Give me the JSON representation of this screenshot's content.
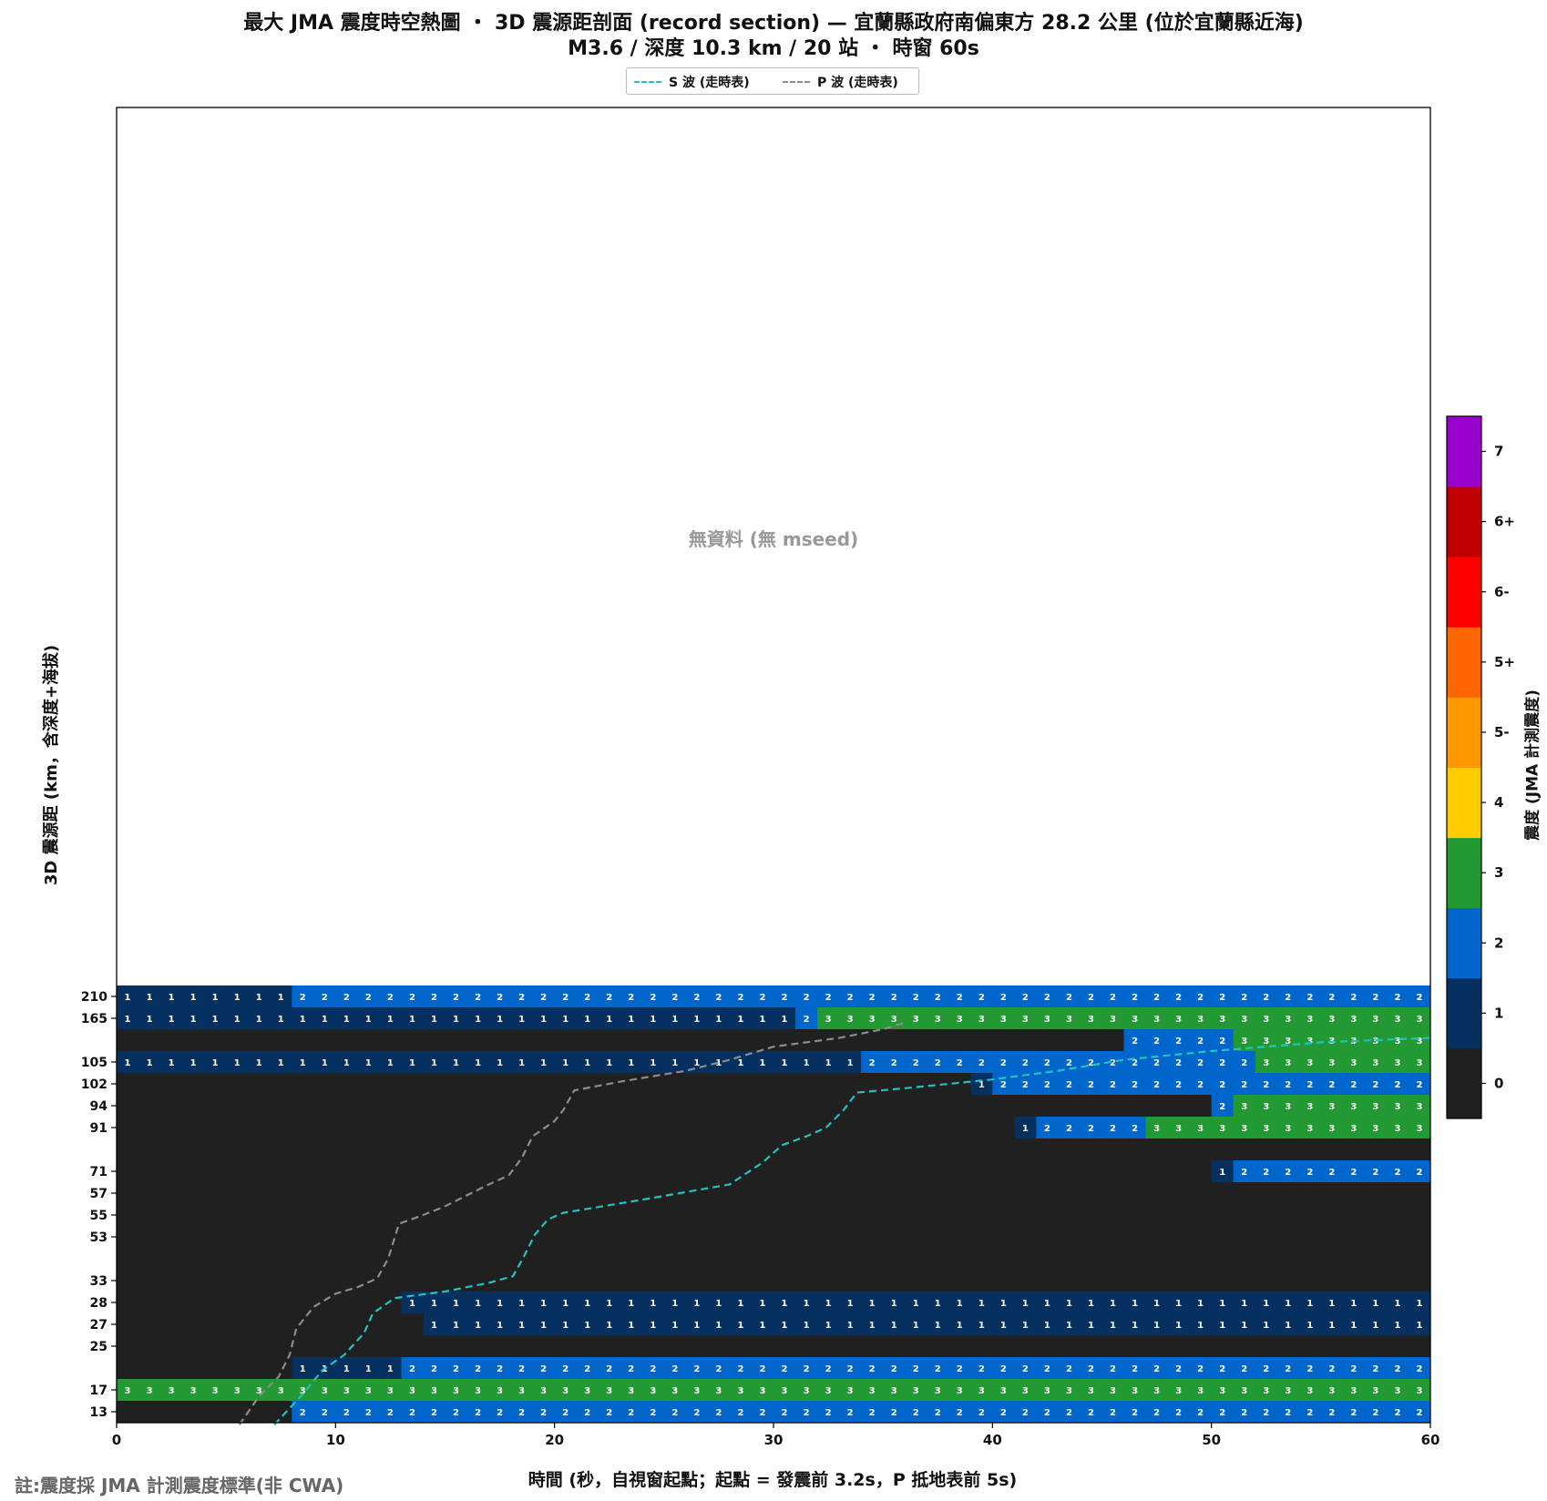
{
  "chart_data": {
    "type": "heatmap",
    "title": "最大 JMA 震度時空熱圖 ・ 3D 震源距剖面 (record section) — 宜蘭縣政府南偏東方  28.2  公里 (位於宜蘭縣近海)",
    "subtitle": "M3.6 / 深度 10.3 km / 20 站 ・ 時窗 60s",
    "xlabel": "時間 (秒，自視窗起點；起點 = 發震前 3.2s，P 抵地表前 5s)",
    "ylabel": "3D 震源距 (km，含深度+海拔)",
    "xlim": [
      0,
      60
    ],
    "x_ticks": [
      0,
      10,
      20,
      30,
      40,
      50,
      60
    ],
    "no_data_text": "無資料 (無 mseed)",
    "note": "註:震度採 JMA 計測震度標準(非 CWA)",
    "legend": [
      {
        "label": "S 波 (走時表)",
        "color": "#22c2c2"
      },
      {
        "label": "P 波 (走時表)",
        "color": "#8c8c8c"
      }
    ],
    "legend_position": "top-center",
    "colorbar": {
      "label": "震度 (JMA 計測震度)",
      "levels": [
        {
          "label": "0",
          "color": "#202020"
        },
        {
          "label": "1",
          "color": "#06305f"
        },
        {
          "label": "2",
          "color": "#0066cc"
        },
        {
          "label": "3",
          "color": "#229933"
        },
        {
          "label": "4",
          "color": "#ffcc00"
        },
        {
          "label": "5-",
          "color": "#ff9900"
        },
        {
          "label": "5+",
          "color": "#ff6600"
        },
        {
          "label": "6-",
          "color": "#ff0000"
        },
        {
          "label": "6+",
          "color": "#c00000"
        },
        {
          "label": "7",
          "color": "#9900cc"
        }
      ]
    },
    "rows": [
      {
        "label": "210",
        "segments": [
          [
            0,
            8,
            1
          ],
          [
            8,
            60,
            2
          ]
        ]
      },
      {
        "label": "165",
        "segments": [
          [
            0,
            31,
            1
          ],
          [
            31,
            32,
            2
          ],
          [
            32,
            60,
            3
          ]
        ]
      },
      {
        "label": "",
        "segments": [
          [
            0,
            46,
            0
          ],
          [
            46,
            51,
            2
          ],
          [
            51,
            60,
            3
          ]
        ]
      },
      {
        "label": "105",
        "segments": [
          [
            0,
            34,
            1
          ],
          [
            34,
            52,
            2
          ],
          [
            52,
            60,
            3
          ]
        ]
      },
      {
        "label": "102",
        "segments": [
          [
            0,
            39,
            0
          ],
          [
            39,
            40,
            1
          ],
          [
            40,
            60,
            2
          ]
        ]
      },
      {
        "label": "94",
        "segments": [
          [
            0,
            50,
            0
          ],
          [
            50,
            51,
            2
          ],
          [
            51,
            60,
            3
          ]
        ]
      },
      {
        "label": "91",
        "segments": [
          [
            0,
            41,
            0
          ],
          [
            41,
            42,
            1
          ],
          [
            42,
            47,
            2
          ],
          [
            47,
            60,
            3
          ]
        ]
      },
      {
        "label": "",
        "segments": [
          [
            0,
            60,
            0
          ]
        ]
      },
      {
        "label": "71",
        "segments": [
          [
            0,
            50,
            0
          ],
          [
            50,
            51,
            1
          ],
          [
            51,
            60,
            2
          ]
        ]
      },
      {
        "label": "57",
        "segments": [
          [
            0,
            60,
            0
          ]
        ]
      },
      {
        "label": "55",
        "segments": [
          [
            0,
            60,
            0
          ]
        ]
      },
      {
        "label": "53",
        "segments": [
          [
            0,
            60,
            0
          ]
        ]
      },
      {
        "label": "",
        "segments": [
          [
            0,
            60,
            0
          ]
        ]
      },
      {
        "label": "33",
        "segments": [
          [
            0,
            60,
            0
          ]
        ]
      },
      {
        "label": "28",
        "segments": [
          [
            0,
            13,
            0
          ],
          [
            13,
            60,
            1
          ]
        ]
      },
      {
        "label": "27",
        "segments": [
          [
            0,
            14,
            0
          ],
          [
            14,
            60,
            1
          ]
        ]
      },
      {
        "label": "25",
        "segments": [
          [
            0,
            60,
            0
          ]
        ]
      },
      {
        "label": "",
        "segments": [
          [
            0,
            8,
            0
          ],
          [
            8,
            13,
            1
          ],
          [
            13,
            60,
            2
          ]
        ]
      },
      {
        "label": "17",
        "segments": [
          [
            0,
            60,
            3
          ]
        ]
      },
      {
        "label": "13",
        "segments": [
          [
            0,
            8,
            0
          ],
          [
            8,
            60,
            2
          ]
        ]
      }
    ],
    "p_wave": [
      [
        5.6,
        19.6
      ],
      [
        6.5,
        18.3
      ],
      [
        7.4,
        17.4
      ],
      [
        7.9,
        16.4
      ],
      [
        8.2,
        15.2
      ],
      [
        9,
        14.2
      ],
      [
        10,
        13.6
      ],
      [
        11,
        13.3
      ],
      [
        11.9,
        12.9
      ],
      [
        12.4,
        12
      ],
      [
        12.9,
        10.4
      ],
      [
        14,
        10
      ],
      [
        15,
        9.6
      ],
      [
        16,
        9.1
      ],
      [
        17,
        8.6
      ],
      [
        17.9,
        8.2
      ],
      [
        18.5,
        7.4
      ],
      [
        19,
        6.4
      ],
      [
        20,
        5.7
      ],
      [
        20.4,
        5.2
      ],
      [
        20.9,
        4.3
      ],
      [
        23,
        3.9
      ],
      [
        26,
        3.4
      ],
      [
        28,
        2.9
      ],
      [
        30,
        2.3
      ],
      [
        33,
        1.9
      ],
      [
        35,
        1.5
      ],
      [
        36,
        1.2
      ]
    ],
    "s_wave": [
      [
        7.2,
        19.6
      ],
      [
        8.5,
        18.2
      ],
      [
        9.4,
        17.1
      ],
      [
        10.4,
        16.4
      ],
      [
        11.3,
        15.4
      ],
      [
        11.7,
        14.5
      ],
      [
        12.7,
        13.8
      ],
      [
        15,
        13.5
      ],
      [
        17,
        13.1
      ],
      [
        18.1,
        12.8
      ],
      [
        18.6,
        11.9
      ],
      [
        19.1,
        10.9
      ],
      [
        19.7,
        10.2
      ],
      [
        20.4,
        9.9
      ],
      [
        24,
        9.3
      ],
      [
        28,
        8.6
      ],
      [
        29.5,
        7.6
      ],
      [
        30.4,
        6.8
      ],
      [
        31.5,
        6.4
      ],
      [
        32.4,
        6
      ],
      [
        33.2,
        5.2
      ],
      [
        33.8,
        4.4
      ],
      [
        36,
        4.2
      ],
      [
        40,
        3.8
      ],
      [
        43,
        3.4
      ],
      [
        46,
        2.9
      ],
      [
        50,
        2.5
      ],
      [
        55,
        2.1
      ],
      [
        60,
        1.9
      ]
    ]
  }
}
